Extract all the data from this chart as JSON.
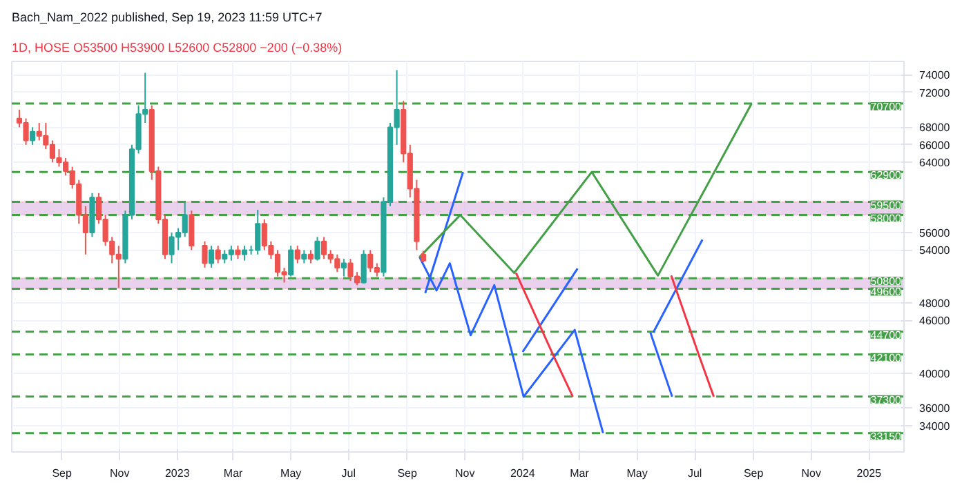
{
  "chart_data": {
    "type": "candlestick",
    "title": "1D, HOSE  O53500  H53900  L52600  C52800  −200 (−0.38%)",
    "annotations": [
      "Bach_Nam_2022 published, Sep 19, 2023 11:59 UTC+7"
    ],
    "x": [
      "2022-07-18",
      "2022-07-25",
      "2022-08-01",
      "2022-08-08",
      "2022-08-15",
      "2022-08-22",
      "2022-08-29",
      "2022-09-05",
      "2022-09-12",
      "2022-09-19",
      "2022-09-26",
      "2022-10-03",
      "2022-10-10",
      "2022-10-17",
      "2022-10-24",
      "2022-10-31",
      "2022-11-07",
      "2022-11-14",
      "2022-11-21",
      "2022-11-28",
      "2022-12-05",
      "2022-12-12",
      "2022-12-19",
      "2022-12-26",
      "2023-01-02",
      "2023-01-09",
      "2023-01-16",
      "2023-01-30",
      "2023-02-06",
      "2023-02-13",
      "2023-02-20",
      "2023-02-27",
      "2023-03-06",
      "2023-03-13",
      "2023-03-20",
      "2023-03-27",
      "2023-04-03",
      "2023-04-10",
      "2023-04-17",
      "2023-04-24",
      "2023-05-01",
      "2023-05-08",
      "2023-05-15",
      "2023-05-22",
      "2023-05-29",
      "2023-06-05",
      "2023-06-12",
      "2023-06-19",
      "2023-06-26",
      "2023-07-03",
      "2023-07-10",
      "2023-07-17",
      "2023-07-24",
      "2023-07-31",
      "2023-08-07",
      "2023-08-14",
      "2023-08-21",
      "2023-08-28",
      "2023-09-04",
      "2023-09-11",
      "2023-09-18"
    ],
    "ohlc": [
      [
        69000,
        70000,
        68000,
        68500
      ],
      [
        68500,
        69000,
        66000,
        66500
      ],
      [
        66500,
        68000,
        66000,
        67500
      ],
      [
        67500,
        68500,
        66500,
        67000
      ],
      [
        67000,
        68500,
        65500,
        66000
      ],
      [
        66000,
        66500,
        64000,
        64500
      ],
      [
        64500,
        65500,
        63500,
        64000
      ],
      [
        64000,
        64500,
        62500,
        63000
      ],
      [
        63000,
        63500,
        61000,
        61500
      ],
      [
        61500,
        62000,
        57000,
        58000
      ],
      [
        58000,
        59000,
        53500,
        56000
      ],
      [
        56000,
        60500,
        55500,
        60000
      ],
      [
        60000,
        60500,
        57000,
        57500
      ],
      [
        57500,
        58000,
        54500,
        55000
      ],
      [
        55000,
        55500,
        52500,
        53500
      ],
      [
        53500,
        54500,
        49700,
        53000
      ],
      [
        53000,
        58500,
        52500,
        58000
      ],
      [
        58000,
        66000,
        57500,
        65500
      ],
      [
        65500,
        70500,
        65000,
        69500
      ],
      [
        69500,
        74200,
        68500,
        70000
      ],
      [
        70000,
        70500,
        62000,
        63000
      ],
      [
        63000,
        63500,
        57000,
        57500
      ],
      [
        57500,
        58000,
        53000,
        53500
      ],
      [
        53500,
        56000,
        52500,
        55500
      ],
      [
        55500,
        56500,
        54000,
        56000
      ],
      [
        56000,
        59400,
        55500,
        58000
      ],
      [
        58000,
        58500,
        54000,
        54500
      ],
      [
        54500,
        55000,
        52000,
        52500
      ],
      [
        52500,
        54500,
        52000,
        54000
      ],
      [
        54000,
        54500,
        52500,
        53000
      ],
      [
        53000,
        54000,
        52500,
        53500
      ],
      [
        53500,
        54500,
        52800,
        54000
      ],
      [
        54000,
        54500,
        53000,
        53500
      ],
      [
        53500,
        54500,
        52800,
        54000
      ],
      [
        54000,
        54500,
        53500,
        54000
      ],
      [
        54000,
        58600,
        53500,
        57000
      ],
      [
        57000,
        57500,
        54000,
        54500
      ],
      [
        54500,
        55000,
        53000,
        53500
      ],
      [
        53500,
        54000,
        51000,
        51500
      ],
      [
        51500,
        52000,
        50300,
        51200
      ],
      [
        51200,
        54500,
        51000,
        54000
      ],
      [
        54000,
        54500,
        52500,
        53000
      ],
      [
        53000,
        54000,
        52500,
        53500
      ],
      [
        53500,
        54000,
        52500,
        53000
      ],
      [
        53000,
        55500,
        52800,
        55000
      ],
      [
        55000,
        55500,
        53000,
        53500
      ],
      [
        53500,
        54000,
        52500,
        53000
      ],
      [
        53000,
        53500,
        51500,
        52000
      ],
      [
        52000,
        53000,
        51000,
        52500
      ],
      [
        52500,
        53000,
        50500,
        51000
      ],
      [
        51000,
        51500,
        50000,
        50300
      ],
      [
        50300,
        54000,
        50200,
        53500
      ],
      [
        53500,
        54000,
        51500,
        52000
      ],
      [
        52000,
        52500,
        51000,
        51500
      ],
      [
        51500,
        60000,
        51000,
        59500
      ],
      [
        59500,
        68500,
        59000,
        68000
      ],
      [
        68000,
        74500,
        66000,
        70000
      ],
      [
        70000,
        71000,
        64000,
        65000
      ],
      [
        65000,
        66000,
        60000,
        61000
      ],
      [
        61000,
        62000,
        54000,
        55000
      ],
      [
        53500,
        53900,
        52600,
        52800
      ]
    ],
    "series": [
      {
        "type": "line",
        "color": "#2962ff",
        "x": [
          "2023-09-14",
          "2023-10-02",
          "2023-10-16",
          "2023-11-07",
          "2023-12-02",
          "2024-01-02",
          "2024-02-25",
          "2024-03-26"
        ],
        "values": [
          53200,
          49400,
          52500,
          44300,
          50000,
          37300,
          44900,
          33150
        ]
      },
      {
        "type": "line",
        "color": "#2962ff",
        "x": [
          "2023-09-20",
          "2023-10-30"
        ],
        "values": [
          49100,
          62900
        ]
      },
      {
        "type": "line",
        "color": "#2962ff",
        "x": [
          "2024-01-01",
          "2024-02-28"
        ],
        "values": [
          42400,
          51900
        ]
      },
      {
        "type": "line",
        "color": "#2962ff",
        "x": [
          "2024-05-15",
          "2024-06-07"
        ],
        "values": [
          44600,
          37300
        ]
      },
      {
        "type": "line",
        "color": "#2962ff",
        "x": [
          "2024-05-18",
          "2024-07-09"
        ],
        "values": [
          44600,
          55200
        ]
      },
      {
        "type": "line",
        "color": "#43a047",
        "x": [
          "2023-09-14",
          "2023-10-27",
          "2023-12-23",
          "2024-03-14",
          "2024-05-23",
          "2024-08-30"
        ],
        "values": [
          53200,
          58000,
          51400,
          62900,
          51100,
          70700
        ]
      },
      {
        "type": "line",
        "color": "#f23645",
        "x": [
          "2023-12-25",
          "2024-02-02",
          "2024-02-23"
        ],
        "values": [
          51400,
          42100,
          37300
        ]
      },
      {
        "type": "line",
        "color": "#f23645",
        "x": [
          "2024-06-06",
          "2024-07-05",
          "2024-07-21"
        ],
        "values": [
          51100,
          42100,
          37300
        ]
      }
    ],
    "ref_lines": [
      {
        "axis": "y",
        "value": 70700,
        "label": "70700",
        "color": "#43a047",
        "line_style": "dashed"
      },
      {
        "axis": "y",
        "value": 62900,
        "label": "62900",
        "color": "#43a047",
        "line_style": "dashed"
      },
      {
        "axis": "y",
        "value": 59500,
        "label": "59500",
        "color": "#43a047",
        "line_style": "dashed"
      },
      {
        "axis": "y",
        "value": 58000,
        "label": "58000",
        "color": "#43a047",
        "line_style": "dashed"
      },
      {
        "axis": "y",
        "value": 50800,
        "label": "50800",
        "color": "#43a047",
        "line_style": "dashed"
      },
      {
        "axis": "y",
        "value": 49600,
        "label": "49600",
        "color": "#43a047",
        "line_style": "dashed"
      },
      {
        "axis": "y",
        "value": 44700,
        "label": "44700",
        "color": "#43a047",
        "line_style": "dashed"
      },
      {
        "axis": "y",
        "value": 42100,
        "label": "42100",
        "color": "#43a047",
        "line_style": "dashed"
      },
      {
        "axis": "y",
        "value": 37300,
        "label": "37300",
        "color": "#43a047",
        "line_style": "dashed"
      },
      {
        "axis": "y",
        "value": 33150,
        "label": "33150",
        "color": "#43a047",
        "line_style": "dashed"
      }
    ],
    "bands": [
      {
        "axis": "y",
        "from": 58000,
        "to": 59500,
        "color": "#e1bee7"
      },
      {
        "axis": "y",
        "from": 49600,
        "to": 50800,
        "color": "#e1bee7"
      }
    ],
    "xlim": [
      "2022-07-10",
      "2025-02-07"
    ],
    "ylim": [
      31000,
      75500
    ],
    "xticks": [
      {
        "value": "2022-09-01",
        "label": "Sep"
      },
      {
        "value": "2022-11-01",
        "label": "Nov"
      },
      {
        "value": "2023-01-01",
        "label": "2023"
      },
      {
        "value": "2023-03-01",
        "label": "Mar"
      },
      {
        "value": "2023-05-01",
        "label": "May"
      },
      {
        "value": "2023-07-01",
        "label": "Jul"
      },
      {
        "value": "2023-09-01",
        "label": "Sep"
      },
      {
        "value": "2023-11-01",
        "label": "Nov"
      },
      {
        "value": "2024-01-01",
        "label": "2024"
      },
      {
        "value": "2024-03-01",
        "label": "Mar"
      },
      {
        "value": "2024-05-01",
        "label": "May"
      },
      {
        "value": "2024-07-01",
        "label": "Jul"
      },
      {
        "value": "2024-09-01",
        "label": "Sep"
      },
      {
        "value": "2024-11-01",
        "label": "Nov"
      },
      {
        "value": "2025-01-01",
        "label": "2025"
      }
    ],
    "yticks": [
      34000,
      36000,
      40000,
      46000,
      48000,
      54000,
      56000,
      64000,
      66000,
      68000,
      72000,
      74000
    ],
    "grid": true
  }
}
